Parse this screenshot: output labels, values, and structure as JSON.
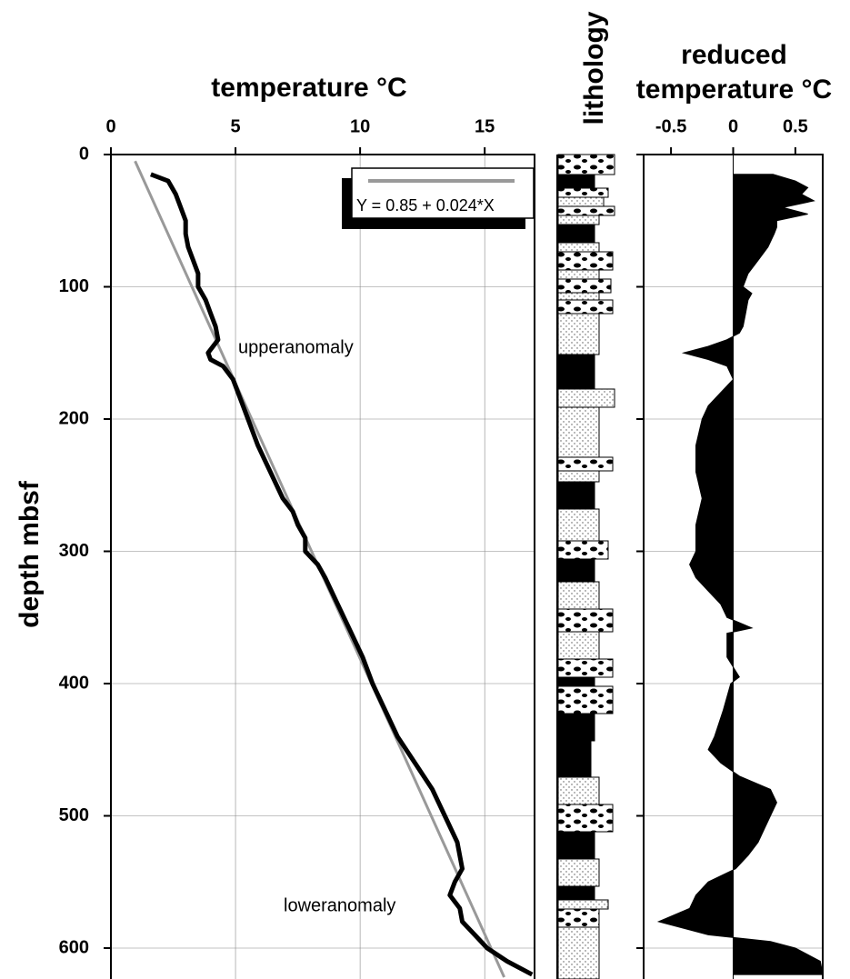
{
  "chart_data": [
    {
      "type": "line",
      "title": "temperature °C",
      "y_label": "depth mbsf",
      "xlim": [
        0,
        17
      ],
      "xticks": [
        0,
        5,
        10,
        15
      ],
      "ylim": [
        0,
        622
      ],
      "yticks": [
        0,
        100,
        200,
        300,
        400,
        500,
        600
      ],
      "y_inverted": true,
      "grid": true,
      "annotations": [
        "upperanomaly",
        "loweranomaly"
      ],
      "series": [
        {
          "color": "#000000",
          "y": [
            15,
            20,
            30,
            40,
            50,
            60,
            70,
            80,
            90,
            100,
            110,
            120,
            130,
            140,
            145,
            150,
            155,
            160,
            170,
            180,
            190,
            200,
            220,
            240,
            260,
            270,
            280,
            290,
            300,
            310,
            320,
            340,
            360,
            380,
            400,
            420,
            440,
            460,
            480,
            500,
            520,
            540,
            550,
            560,
            570,
            580,
            590,
            600,
            610,
            620
          ],
          "values": [
            1.6,
            2.3,
            2.6,
            2.8,
            3.0,
            3.0,
            3.1,
            3.3,
            3.5,
            3.5,
            3.8,
            4.0,
            4.2,
            4.3,
            4.1,
            3.9,
            4.0,
            4.5,
            4.9,
            5.1,
            5.3,
            5.5,
            5.9,
            6.4,
            6.9,
            7.3,
            7.5,
            7.8,
            7.8,
            8.3,
            8.6,
            9.1,
            9.6,
            10.1,
            10.5,
            11.0,
            11.5,
            12.2,
            12.9,
            13.4,
            13.9,
            14.1,
            13.8,
            13.6,
            14.0,
            14.1,
            14.6,
            15.1,
            15.9,
            16.9
          ]
        },
        {
          "name": "Y = 0.85 + 0.024*X",
          "color": "#999999",
          "y": [
            5,
            622
          ],
          "values": [
            0.97,
            15.78
          ]
        }
      ]
    },
    {
      "type": "lithology",
      "title": "lithology"
    },
    {
      "type": "area",
      "title": "reduced temperature °C",
      "xlim": [
        -0.72,
        0.72
      ],
      "xticks": [
        -0.5,
        0,
        0.5
      ],
      "color": "#000000",
      "y": [
        15,
        20,
        25,
        30,
        35,
        40,
        45,
        50,
        55,
        60,
        70,
        80,
        90,
        100,
        105,
        110,
        120,
        130,
        135,
        140,
        145,
        150,
        155,
        160,
        170,
        180,
        190,
        200,
        220,
        240,
        260,
        280,
        300,
        310,
        320,
        330,
        340,
        350,
        358,
        362,
        380,
        395,
        400,
        420,
        440,
        450,
        460,
        470,
        480,
        490,
        500,
        510,
        520,
        530,
        540,
        550,
        560,
        570,
        580,
        590,
        595,
        600,
        610,
        620
      ],
      "values": [
        0.32,
        0.5,
        0.6,
        0.55,
        0.65,
        0.4,
        0.6,
        0.35,
        0.35,
        0.33,
        0.28,
        0.2,
        0.12,
        0.08,
        0.15,
        0.12,
        0.1,
        0.08,
        0.05,
        -0.05,
        -0.2,
        -0.4,
        -0.2,
        -0.05,
        0,
        -0.1,
        -0.2,
        -0.25,
        -0.3,
        -0.3,
        -0.25,
        -0.3,
        -0.3,
        -0.35,
        -0.3,
        -0.2,
        -0.1,
        -0.05,
        0.15,
        -0.05,
        -0.05,
        0.05,
        -0.02,
        -0.08,
        -0.15,
        -0.2,
        -0.1,
        0.05,
        0.3,
        0.35,
        0.3,
        0.25,
        0.2,
        0.12,
        0.02,
        -0.2,
        -0.3,
        -0.35,
        -0.6,
        -0.2,
        0.3,
        0.5,
        0.7,
        0.72
      ]
    }
  ]
}
